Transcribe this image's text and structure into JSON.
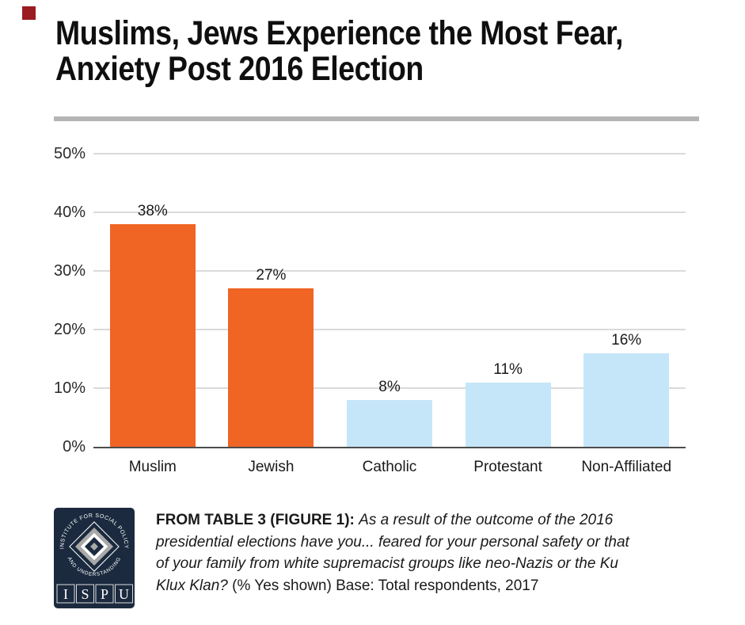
{
  "header": {
    "accent_square_color": "#9A1B20",
    "title_line1": "Muslims, Jews Experience the Most Fear,",
    "title_line2": "Anxiety Post 2016 Election"
  },
  "chart_data": {
    "type": "bar",
    "title": "Muslims, Jews Experience the Most Fear, Anxiety Post 2016 Election",
    "categories": [
      "Muslim",
      "Jewish",
      "Catholic",
      "Protestant",
      "Non-Affiliated"
    ],
    "values": [
      38,
      27,
      8,
      11,
      16
    ],
    "value_labels": [
      "38%",
      "27%",
      "8%",
      "11%",
      "16%"
    ],
    "bar_colors": [
      "#F06424",
      "#F06424",
      "#C5E6F8",
      "#C5E6F8",
      "#C5E6F8"
    ],
    "xlabel": "",
    "ylabel": "",
    "ylim": [
      0,
      50
    ],
    "yticks": [
      {
        "value": 0,
        "label": "0%"
      },
      {
        "value": 10,
        "label": "10%"
      },
      {
        "value": 20,
        "label": "20%"
      },
      {
        "value": 30,
        "label": "30%"
      },
      {
        "value": 40,
        "label": "40%"
      },
      {
        "value": 50,
        "label": "50%"
      }
    ],
    "grid": "horizontal",
    "legend": "none"
  },
  "footer": {
    "logo": {
      "arc_top": "INSTITUTE FOR SOCIAL POLICY",
      "arc_bottom": "AND UNDERSTANDING",
      "letters": [
        "I",
        "S",
        "P",
        "U"
      ],
      "navy": "#1B2A3E",
      "silver": "#A9A9A9"
    },
    "caption": {
      "lines": [
        [
          {
            "style": "bold",
            "text": "FROM TABLE 3 (FIGURE 1): "
          },
          {
            "style": "italic",
            "text": "As a result of the outcome of the 2016"
          }
        ],
        [
          {
            "style": "italic",
            "text": "presidential elections have you... feared for your personal safety or that"
          }
        ],
        [
          {
            "style": "italic",
            "text": "of your family from white supremacist groups like neo-Nazis or the Ku"
          }
        ],
        [
          {
            "style": "italic",
            "text": "Klux Klan? "
          },
          {
            "style": "regular",
            "text": "(% Yes shown) Base: Total respondents, 2017"
          }
        ]
      ]
    }
  },
  "colors": {
    "separator": "#B5B5B5",
    "gridline": "#DADADA",
    "axis_line": "#4D4D4D",
    "bar_highlight": "#F06424",
    "bar_muted": "#C5E6F8",
    "text": "#1A1A1A"
  }
}
